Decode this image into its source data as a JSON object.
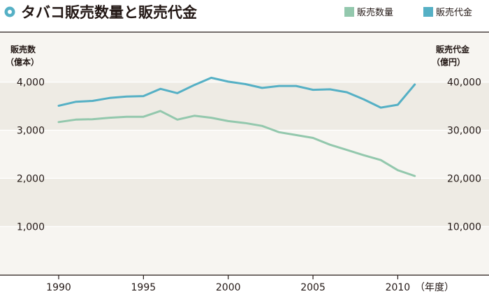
{
  "title": "タバコ販売数量と販売代金",
  "legend": [
    {
      "label": "販売数量",
      "color": "#93c8ad"
    },
    {
      "label": "販売代金",
      "color": "#55b0c5"
    }
  ],
  "left_axis": {
    "label_line1": "販売数",
    "label_line2": "（億本）"
  },
  "right_axis": {
    "label_line1": "販売代金",
    "label_line2": "（億円）"
  },
  "x_axis": {
    "unit": "（年度）"
  },
  "chart_data": {
    "type": "line",
    "title": "タバコ販売数量と販売代金",
    "x": [
      1990,
      1991,
      1992,
      1993,
      1994,
      1995,
      1996,
      1997,
      1998,
      1999,
      2000,
      2001,
      2002,
      2003,
      2004,
      2005,
      2006,
      2007,
      2008,
      2009,
      2010,
      2011
    ],
    "x_ticks": [
      "1990",
      "1995",
      "2000",
      "2005",
      "2010"
    ],
    "x_range": [
      1989.4,
      2012.5
    ],
    "series": [
      {
        "name": "販売数量",
        "axis": "left",
        "color": "#93c8ad",
        "values": [
          3170,
          3220,
          3230,
          3260,
          3280,
          3280,
          3400,
          3220,
          3300,
          3260,
          3190,
          3150,
          3090,
          2960,
          2900,
          2840,
          2700,
          2590,
          2480,
          2380,
          2170,
          2050
        ]
      },
      {
        "name": "販売代金",
        "axis": "right",
        "color": "#55b0c5",
        "values": [
          35100,
          35900,
          36100,
          36700,
          37000,
          37100,
          38600,
          37700,
          39400,
          40900,
          40100,
          39600,
          38800,
          39200,
          39200,
          38400,
          38500,
          37900,
          36400,
          34700,
          35300,
          39500
        ]
      }
    ],
    "y_left": {
      "label": "販売数（億本）",
      "ylim": [
        0,
        4500
      ],
      "ticks": [
        "1,000",
        "2,000",
        "3,000",
        "4,000"
      ],
      "tick_values": [
        1000,
        2000,
        3000,
        4000
      ]
    },
    "y_right": {
      "label": "販売代金（億円）",
      "ylim": [
        0,
        45000
      ],
      "ticks": [
        "10,000",
        "20,000",
        "30,000",
        "40,000"
      ],
      "tick_values": [
        10000,
        20000,
        30000,
        40000
      ]
    },
    "grid": true,
    "legend_position": "top-right"
  }
}
